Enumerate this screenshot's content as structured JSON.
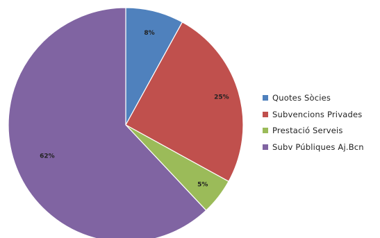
{
  "chart_data": {
    "type": "pie",
    "categories": [
      "Quotes Sòcies",
      "Subvencions Privades",
      "Prestació Serveis",
      "Subv Públiques Aj.Bcn"
    ],
    "values": [
      8,
      25,
      5,
      62
    ],
    "data_labels": [
      "8%",
      "25%",
      "5%",
      "62%"
    ],
    "colors": [
      "#4f81bd",
      "#c0504d",
      "#9bbb59",
      "#8064a2"
    ],
    "legend_position": "right",
    "start": "top",
    "direction": "clockwise"
  }
}
